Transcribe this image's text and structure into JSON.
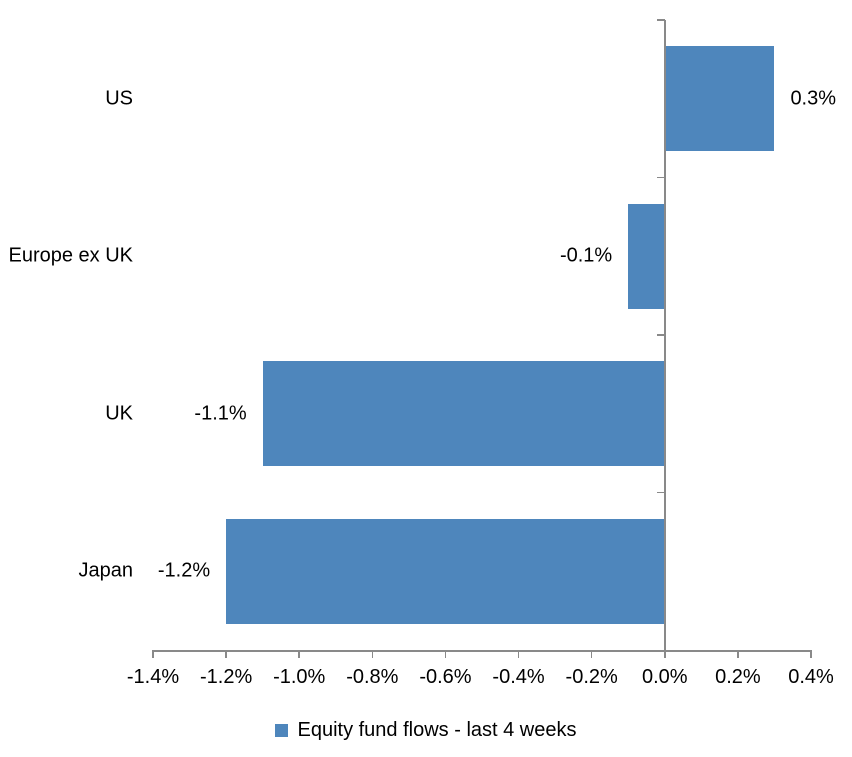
{
  "chart_data": {
    "type": "bar",
    "orientation": "horizontal",
    "title": "",
    "categories": [
      "US",
      "Europe ex UK",
      "UK",
      "Japan"
    ],
    "series": [
      {
        "name": "Equity fund flows - last 4 weeks",
        "values": [
          0.3,
          -0.1,
          -1.1,
          -1.2
        ],
        "data_labels": [
          "0.3%",
          "-0.1%",
          "-1.1%",
          "-1.2%"
        ]
      }
    ],
    "x_axis": {
      "min": -1.4,
      "max": 0.4,
      "step": 0.2,
      "unit": "%",
      "tick_labels": [
        "-1.4%",
        "-1.2%",
        "-1.0%",
        "-0.8%",
        "-0.6%",
        "-0.4%",
        "-0.2%",
        "0.0%",
        "0.2%",
        "0.4%"
      ]
    },
    "grid": false,
    "legend_position": "bottom",
    "colors": {
      "bar": "#4E86BC",
      "axis": "#898989",
      "text": "#000000"
    }
  },
  "legend": {
    "label": "Equity fund flows - last 4 weeks"
  }
}
